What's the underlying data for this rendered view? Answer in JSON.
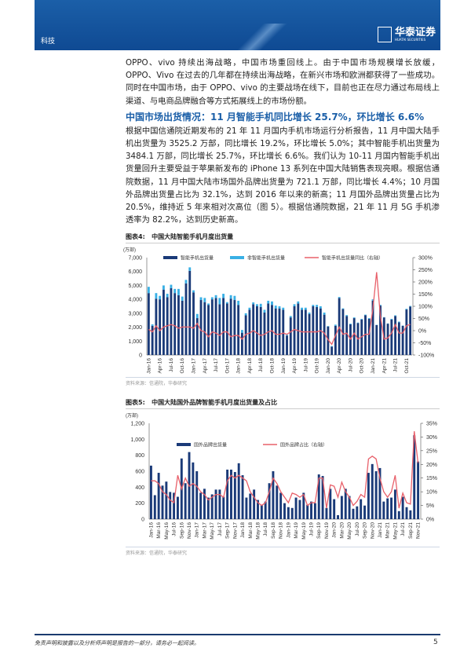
{
  "header": {
    "section": "科技",
    "logo_cn": "华泰证券",
    "logo_en": "HUATAI SECURITIES"
  },
  "paragraph1": "OPPO、vivo 持续出海战略，中国市场重回线上。由于中国市场规模增长放缓，OPPO、Vivo 在过去的几年都在持续出海战略，在新兴市场和欧洲都获得了一些成功。同时在中国市场，由于 OPPO、vivo 的主要战场在线下，目前也正在尽力通过布局线上渠道、与电商品牌融合等方式拓展线上的市场份额。",
  "heading": "中国市场出货情况：11 月智能手机同比增长 25.7%，环比增长 6.6%",
  "paragraph2": "根据中国信通院近期发布的 21 年 11 月国内手机市场运行分析报告，11 月中国大陆手机出货量为 3525.2 万部，同比增长 19.2%，环比增长 5.0%；其中智能手机出货量为 3484.1 万部，同比增长 25.7%，环比增长 6.6%。我们认为 10-11 月国内智能手机出货量回升主要受益于苹果新发布的 iPhone 13 系列在中国大陆销售表现亮眼。根据信通院数据，11 月中国大陆市场国外品牌出货量为 721.1 万部，同比增长 4.4%；10 月国外品牌出货量占比为 32.1%，达到 2016 年以来的新高；11 月国外品牌出货量占比为 20.5%，维持近 5 年来相对次高位（图 5）。根据信通院数据，21 年 11 月 5G 手机渗透率为 82.2%，达到历史新高。",
  "footer": {
    "disclaimer": "免责声明和披露以及分析师声明是报告的一部分，请务必一起阅读。",
    "page": "5"
  },
  "colors": {
    "brand": "#1b5fa8",
    "smart": "#1a3a78",
    "nonsmart": "#39b0e5",
    "line": "#e8606a"
  },
  "chart_data": [
    {
      "type": "bar",
      "label": "图表4:",
      "title": "中国大陆智能手机月度出货量",
      "unit": "(万部)",
      "source": "资料来源：信通院，华泰研究",
      "x_start": "Jan-16",
      "x_end": "Nov-21",
      "tick_labels": [
        "Jan-16",
        "Apr-16",
        "Jul-16",
        "Oct-16",
        "Jan-17",
        "Apr-17",
        "Jul-17",
        "Oct-17",
        "Jan-18",
        "Apr-18",
        "Jul-18",
        "Oct-18",
        "Jan-19",
        "Apr-19",
        "Jul-19",
        "Oct-19",
        "Jan-20",
        "Apr-20",
        "Jul-20",
        "Oct-20",
        "Jan-21",
        "Apr-21",
        "Jul-21",
        "Oct-21"
      ],
      "ylim": [
        0,
        7000
      ],
      "yticks": [
        "0",
        "1,000",
        "2,000",
        "3,000",
        "4,000",
        "5,000",
        "6,000",
        "7,000"
      ],
      "y2lim": [
        -100,
        300
      ],
      "y2ticks": [
        "-100%",
        "-50%",
        "0%",
        "50%",
        "100%",
        "150%",
        "200%",
        "250%",
        "300%"
      ],
      "series": [
        {
          "name": "智能手机出货量",
          "kind": "bar",
          "values": [
            4450,
            2100,
            4050,
            4000,
            4700,
            4150,
            4800,
            4450,
            4300,
            3900,
            5150,
            6050,
            4500,
            2650,
            3950,
            3800,
            3600,
            4000,
            4100,
            3650,
            4100,
            3700,
            4050,
            3950,
            3600,
            1600,
            2850,
            3250,
            3650,
            3500,
            3450,
            3050,
            3700,
            3600,
            3350,
            3350,
            3250,
            1400,
            2700,
            3500,
            3700,
            3250,
            3250,
            2950,
            3500,
            3450,
            3350,
            2900,
            2050,
            600,
            2100,
            4100,
            3300,
            2800,
            2200,
            2650,
            2300,
            2550,
            2850,
            2600,
            3900,
            2150,
            3550,
            2700,
            2250,
            2550,
            2800,
            2350,
            2100,
            3270,
            3484.1
          ]
        },
        {
          "name": "非智能手机出货量",
          "kind": "bar-stack",
          "values": [
            450,
            100,
            400,
            250,
            300,
            250,
            250,
            300,
            450,
            300,
            250,
            250,
            150,
            300,
            200,
            300,
            100,
            150,
            200,
            450,
            300,
            100,
            250,
            300,
            300,
            200,
            150,
            150,
            130,
            150,
            230,
            200,
            200,
            250,
            200,
            150,
            150,
            50,
            100,
            150,
            150,
            150,
            150,
            100,
            100,
            150,
            150,
            150,
            30,
            40,
            80,
            70,
            50,
            70,
            50,
            50,
            30,
            50,
            50,
            50,
            100,
            20,
            50,
            20,
            20,
            50,
            50,
            50,
            20,
            50,
            41.1
          ]
        },
        {
          "name": "智能手机出货量同比（右轴）",
          "kind": "line",
          "axis": "right",
          "values": [
            5,
            -5,
            20,
            0,
            15,
            20,
            25,
            20,
            10,
            15,
            15,
            15,
            10,
            30,
            0,
            -5,
            -25,
            -5,
            -10,
            -20,
            -5,
            -5,
            -25,
            -20,
            -20,
            -35,
            -15,
            -10,
            0,
            -10,
            -20,
            -15,
            -5,
            0,
            -15,
            -15,
            -10,
            -15,
            -5,
            5,
            0,
            -5,
            -5,
            -5,
            -5,
            -5,
            0,
            -10,
            -37,
            -56,
            -20,
            15,
            -15,
            -10,
            -35,
            -10,
            -35,
            -25,
            -15,
            -15,
            90,
            240,
            60,
            -35,
            -30,
            -10,
            25,
            -10,
            -10,
            20,
            25.7
          ]
        }
      ]
    },
    {
      "type": "bar",
      "label": "图表5:",
      "title": "中国大陆国外品牌智能手机月度出货量及占比",
      "unit": "(万部)",
      "source": "资料来源：信通院，华泰研究",
      "x_start": "Jan-16",
      "x_end": "Nov-21",
      "tick_labels": [
        "Jan-16",
        "Mar-16",
        "May-16",
        "Jul-16",
        "Sep-16",
        "Nov-16",
        "Jan-17",
        "Mar-17",
        "May-17",
        "Jul-17",
        "Sep-17",
        "Nov-17",
        "Jan-18",
        "Mar-18",
        "May-18",
        "Jul-18",
        "Sep-18",
        "Nov-18",
        "Jan-19",
        "Mar-19",
        "May-19",
        "Jul-19",
        "Sep-19",
        "Nov-19",
        "Jan-20",
        "Mar-20",
        "May-20",
        "Jul-20",
        "Sep-20",
        "Nov-20",
        "Jan-21",
        "Mar-21",
        "May-21",
        "Jul-21",
        "Sep-21",
        "Nov-21"
      ],
      "ylim": [
        0,
        1200
      ],
      "yticks": [
        "0",
        "200",
        "400",
        "600",
        "800",
        "1,000",
        "1,200"
      ],
      "y2lim": [
        0,
        35
      ],
      "y2ticks": [
        "0%",
        "5%",
        "10%",
        "15%",
        "20%",
        "25%",
        "30%",
        "35%"
      ],
      "series": [
        {
          "name": "国外品牌出货量",
          "kind": "bar",
          "values": [
            670,
            300,
            580,
            420,
            470,
            340,
            330,
            280,
            760,
            450,
            840,
            710,
            600,
            330,
            380,
            270,
            310,
            370,
            370,
            280,
            620,
            620,
            590,
            700,
            550,
            270,
            320,
            370,
            240,
            180,
            220,
            450,
            600,
            420,
            330,
            200,
            150,
            140,
            270,
            240,
            330,
            180,
            220,
            200,
            560,
            540,
            140,
            380,
            250,
            50,
            290,
            380,
            290,
            130,
            160,
            250,
            170,
            580,
            690,
            600,
            640,
            220,
            260,
            270,
            370,
            100,
            280,
            150,
            110,
            1050,
            721.1
          ]
        },
        {
          "name": "国外品牌占比（右轴）",
          "kind": "line",
          "axis": "right",
          "values": [
            14,
            14,
            13,
            10,
            9,
            7,
            6,
            16,
            11,
            15,
            12,
            13,
            12,
            10,
            9,
            7,
            8,
            9,
            9,
            8,
            14,
            16,
            15,
            16,
            15,
            14,
            10,
            8,
            6,
            5,
            6,
            10,
            15,
            13,
            10,
            8,
            6,
            9.5,
            9,
            8,
            9,
            5,
            6,
            6,
            15,
            15,
            4,
            12.5,
            12,
            8,
            13.5,
            10,
            8,
            5,
            6.5,
            9,
            8,
            22,
            23,
            22,
            15,
            10,
            8,
            10,
            16,
            4,
            9.5,
            6,
            5.5,
            32.1,
            20.5
          ]
        }
      ]
    }
  ]
}
